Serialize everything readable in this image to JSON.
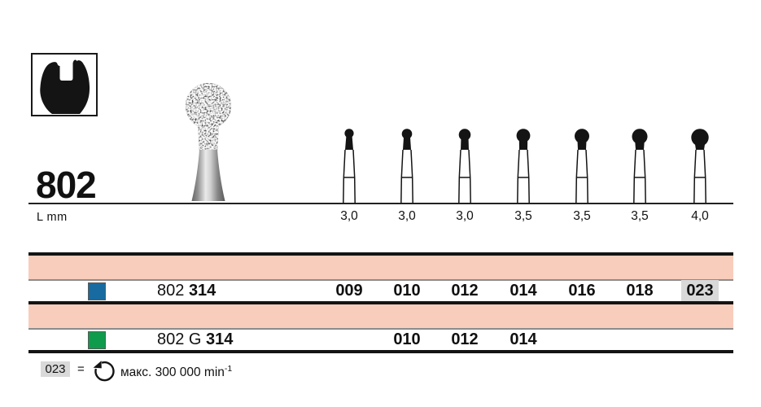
{
  "header": {
    "figure_number": "802",
    "length_unit_label": "L mm",
    "tooth_shape_icon": "molar-crown-silhouette",
    "photo": "round-diamond-bur"
  },
  "pictograms": {
    "lengths_mm": [
      "3,0",
      "3,0",
      "3,0",
      "3,5",
      "3,5",
      "3,5",
      "4,0"
    ]
  },
  "table": {
    "band_color": "#f8cdbb",
    "highlight_color": "#d9d9d9",
    "rows": [
      {
        "swatch_color": "#186ba0",
        "label_plain": "802 ",
        "label_bold": "314",
        "sizes": [
          "009",
          "010",
          "012",
          "014",
          "016",
          "018",
          "023"
        ],
        "highlight_index": 6
      },
      {
        "swatch_color": "#0f9b4c",
        "label_plain": "802 G ",
        "label_bold": "314",
        "sizes": [
          "",
          "010",
          "012",
          "014",
          "",
          "",
          ""
        ],
        "highlight_index": -1
      }
    ]
  },
  "footnote": {
    "code": "023",
    "equals": "=",
    "icon": "rotation-max-speed-icon",
    "speed_text": "макс. 300 000 min",
    "speed_sup": "-1"
  }
}
